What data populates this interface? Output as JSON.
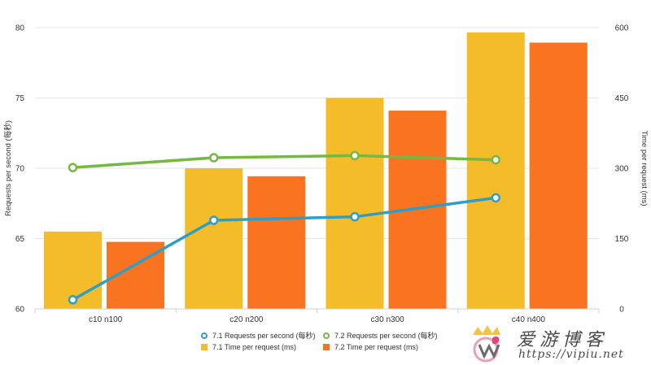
{
  "chart_data": {
    "type": "bar",
    "title": "",
    "categories": [
      "c10 n100",
      "c20 n200",
      "c30 n300",
      "c40 n400"
    ],
    "y_left": {
      "label": "Requests per second (每秒)",
      "range": [
        60,
        80
      ],
      "ticks": [
        60,
        65,
        70,
        75,
        80
      ]
    },
    "y_right": {
      "label": "Time per request (ms)",
      "range": [
        0,
        600
      ],
      "ticks": [
        0,
        150,
        300,
        450,
        600
      ]
    },
    "grid": true,
    "legend_position": "bottom",
    "series": [
      {
        "name": "7.1 Time per request (ms)",
        "kind": "bar",
        "axis": "right",
        "color": "#f5bc2a",
        "values": [
          165,
          300,
          450,
          590
        ]
      },
      {
        "name": "7.2 Time per request (ms)",
        "kind": "bar",
        "axis": "right",
        "color": "#f97320",
        "values": [
          143,
          283,
          423,
          568
        ]
      },
      {
        "name": "7.1 Requests per second (每秒)",
        "kind": "line",
        "axis": "left",
        "color": "#2d9fc6",
        "values": [
          60.65,
          66.3,
          66.55,
          67.9
        ]
      },
      {
        "name": "7.2 Requests per second (每秒)",
        "kind": "line",
        "axis": "left",
        "color": "#77b843",
        "values": [
          70.05,
          70.75,
          70.9,
          70.6
        ]
      }
    ]
  },
  "legend": {
    "items": [
      {
        "label": "7.1 Requests per second (每秒)",
        "color": "#2d9fc6",
        "shape": "circle"
      },
      {
        "label": "7.2 Requests per second (每秒)",
        "color": "#77b843",
        "shape": "circle"
      },
      {
        "label": "7.1 Time per request (ms)",
        "color": "#f5bc2a",
        "shape": "square"
      },
      {
        "label": "7.2 Time per request (ms)",
        "color": "#f97320",
        "shape": "square"
      }
    ]
  },
  "watermark": {
    "title": "爱游博客",
    "url": "https://vipiu.net"
  }
}
